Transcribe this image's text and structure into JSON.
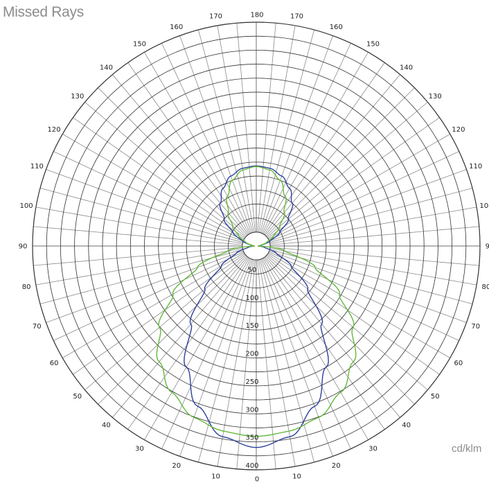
{
  "title": "Missed Rays",
  "unit_label": "cd/klm",
  "colors": {
    "grid": "#8a8a8a",
    "ring": "#303030",
    "series_blue": "#2b3f9b",
    "series_green": "#62b83a"
  },
  "chart_data": {
    "type": "line",
    "coordinate_system": "polar",
    "angle_direction": "0 at bottom, 180 at top, 90 at left and right",
    "angle_step": 10,
    "angle_tick_labels": [
      "0",
      "10",
      "20",
      "30",
      "40",
      "50",
      "60",
      "70",
      "80",
      "90",
      "100",
      "110",
      "120",
      "130",
      "140",
      "150",
      "160",
      "170",
      "180"
    ],
    "radial_ticks": [
      50,
      100,
      150,
      200,
      250,
      300,
      350,
      400
    ],
    "rlim": [
      0,
      400
    ],
    "grid": true,
    "legend": "none",
    "series": [
      {
        "color": "#2b3f9b",
        "points": [
          [
            0,
            360
          ],
          [
            10,
            346
          ],
          [
            20,
            305
          ],
          [
            30,
            250
          ],
          [
            40,
            182
          ],
          [
            50,
            120
          ],
          [
            60,
            72
          ],
          [
            70,
            38
          ],
          [
            80,
            15
          ],
          [
            90,
            3
          ],
          [
            100,
            10
          ],
          [
            110,
            26
          ],
          [
            120,
            48
          ],
          [
            130,
            75
          ],
          [
            140,
            100
          ],
          [
            150,
            119
          ],
          [
            160,
            133
          ],
          [
            170,
            141
          ],
          [
            180,
            143
          ]
        ]
      },
      {
        "color": "#62b83a",
        "points": [
          [
            0,
            340
          ],
          [
            10,
            336
          ],
          [
            20,
            326
          ],
          [
            30,
            302
          ],
          [
            40,
            270
          ],
          [
            50,
            226
          ],
          [
            60,
            172
          ],
          [
            70,
            112
          ],
          [
            80,
            52
          ],
          [
            90,
            3
          ],
          [
            100,
            8
          ],
          [
            110,
            20
          ],
          [
            120,
            36
          ],
          [
            130,
            55
          ],
          [
            140,
            78
          ],
          [
            150,
            103
          ],
          [
            160,
            125
          ],
          [
            170,
            138
          ],
          [
            180,
            142
          ]
        ]
      }
    ]
  }
}
